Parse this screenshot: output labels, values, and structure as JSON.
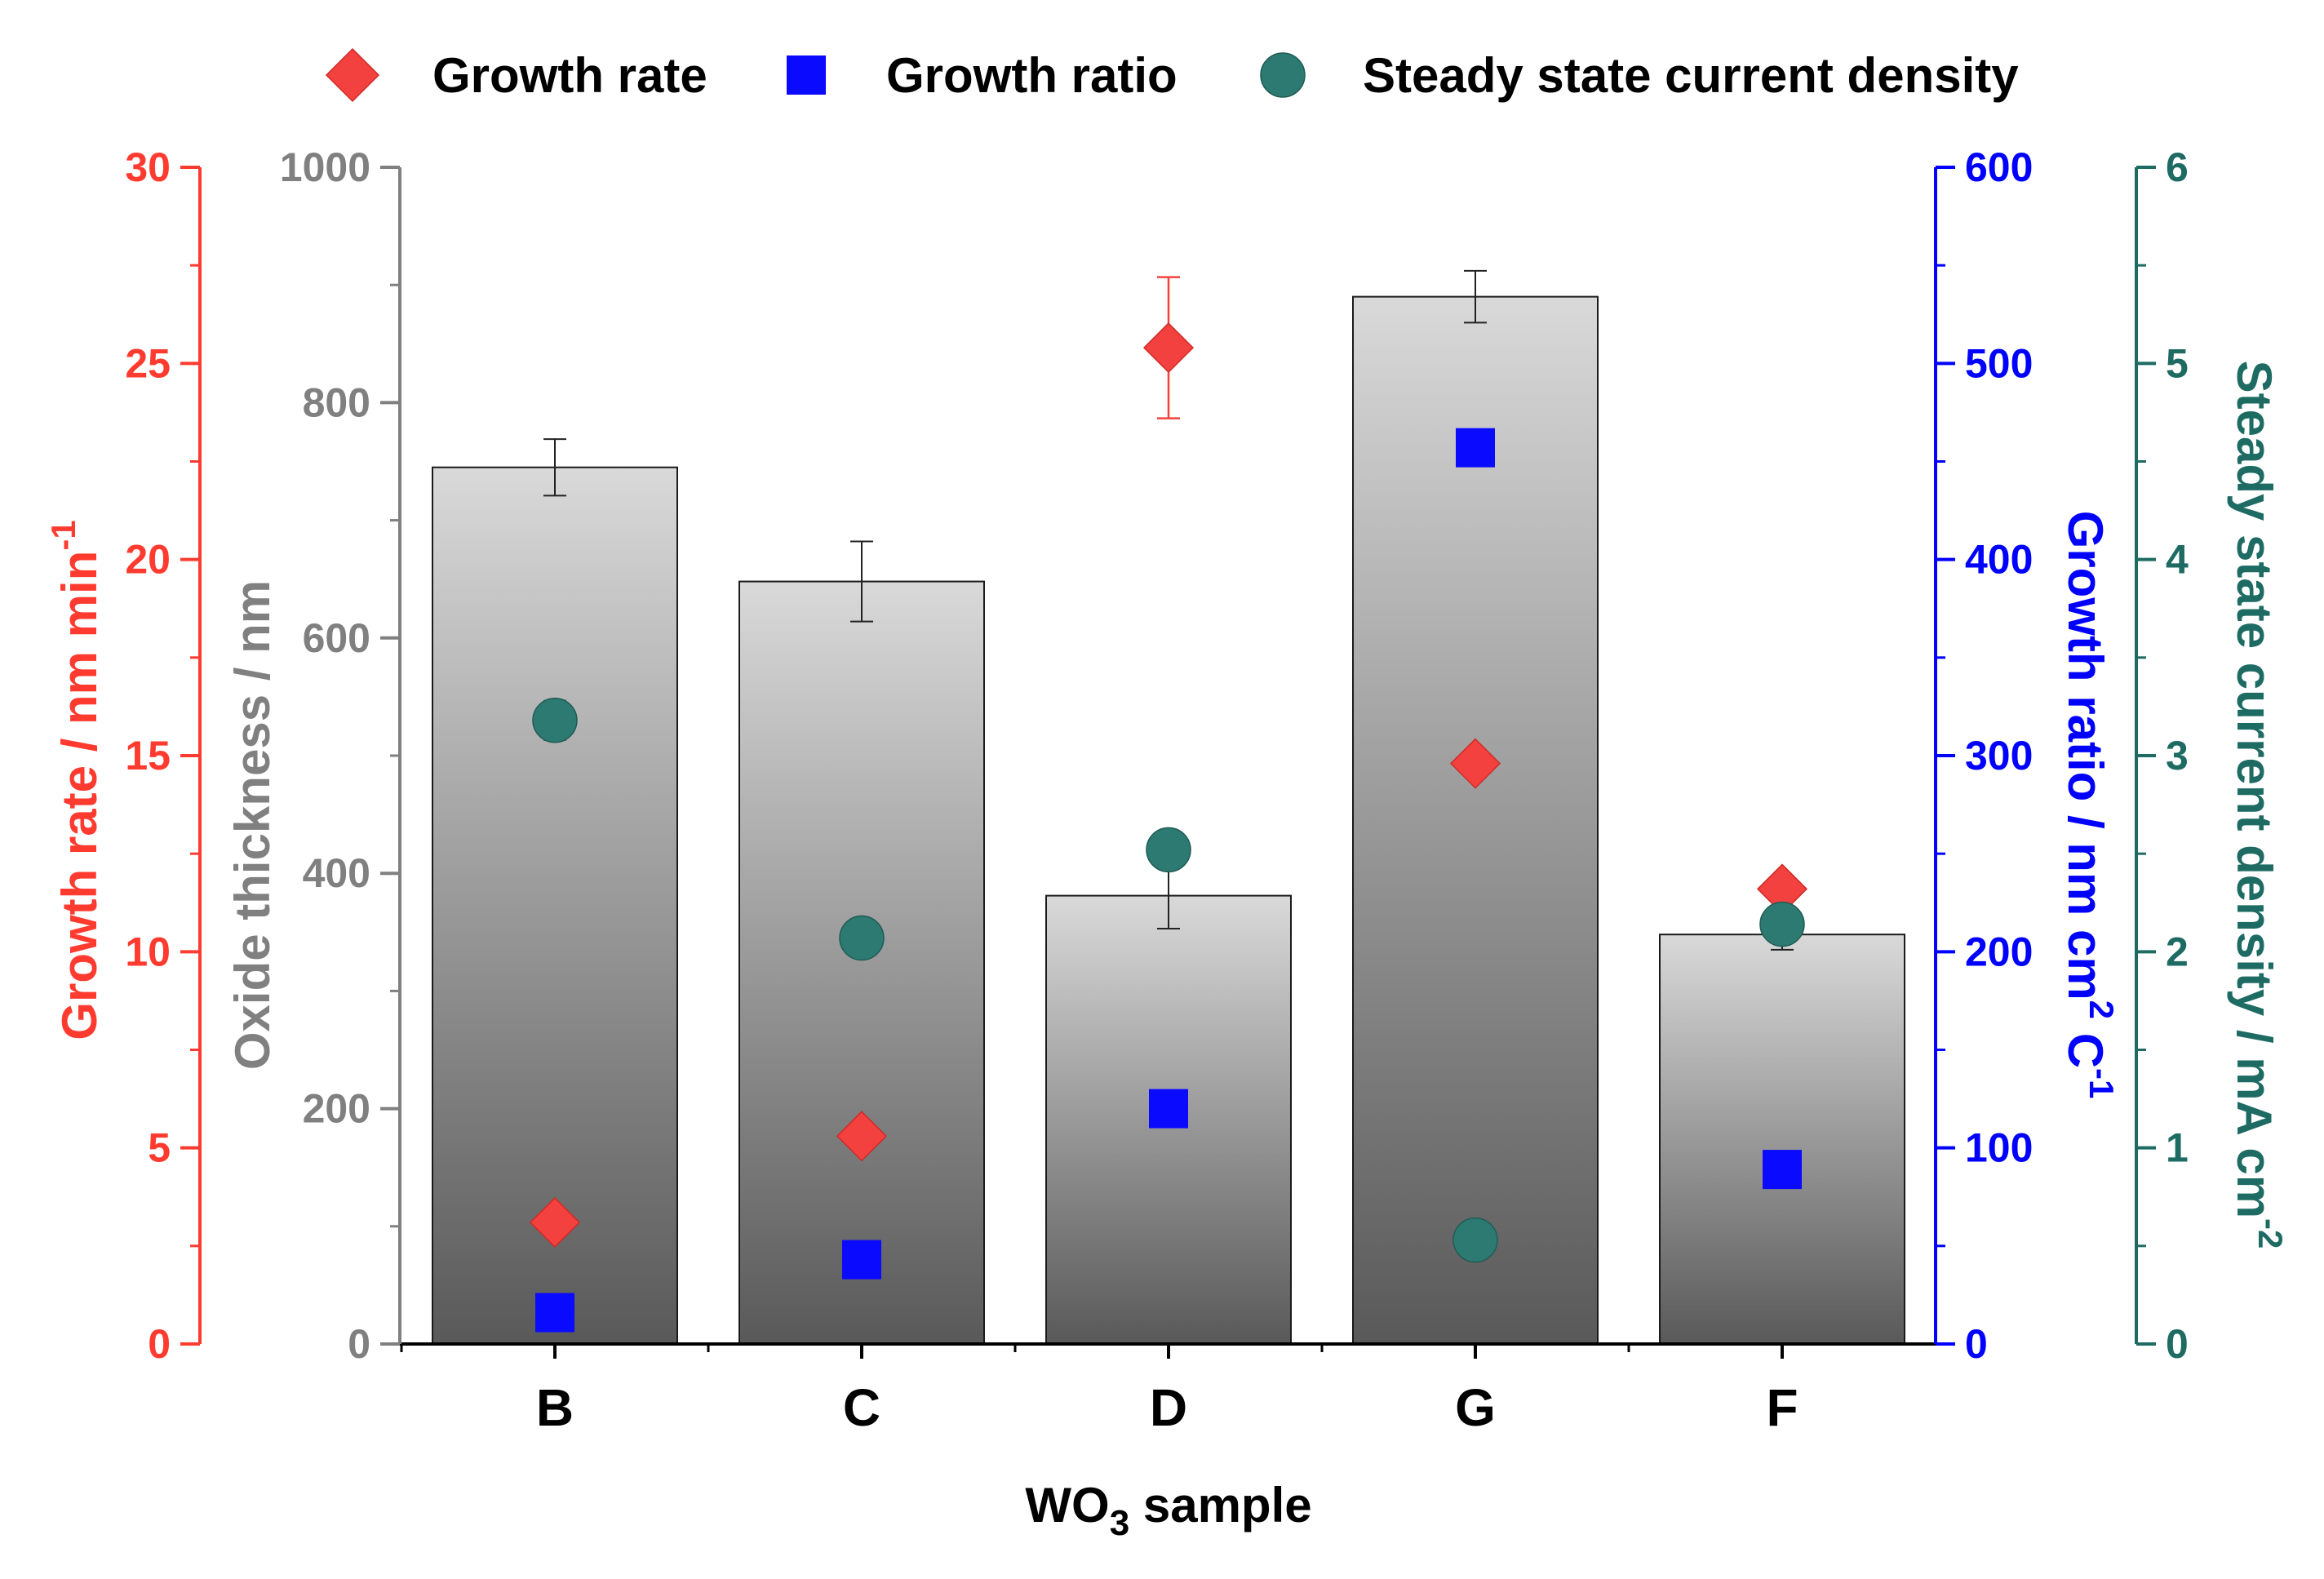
{
  "chart_data": {
    "type": "bar",
    "categories": [
      "B",
      "C",
      "D",
      "G",
      "F"
    ],
    "xlabel": {
      "main": "WO",
      "sub": "3",
      "rest": " sample"
    },
    "series": [
      {
        "name": "",
        "axis": "oxide",
        "kind": "bar",
        "values": [
          745,
          648,
          381,
          890,
          348
        ],
        "errors": [
          24,
          34,
          28,
          22,
          13
        ]
      },
      {
        "name": "Growth rate",
        "axis": "rate",
        "kind": "diamond",
        "values": [
          3.1,
          5.3,
          25.4,
          14.8,
          11.6
        ],
        "errors": [
          0,
          0,
          1.8,
          0,
          0
        ]
      },
      {
        "name": "Growth ratio",
        "axis": "ratio",
        "kind": "square",
        "values": [
          16,
          43,
          120,
          457,
          89
        ],
        "errors": [
          0,
          0,
          0,
          0,
          0
        ]
      },
      {
        "name": "Steady state current density",
        "axis": "current",
        "kind": "circle",
        "values": [
          3.18,
          2.07,
          2.52,
          0.53,
          2.14
        ],
        "errors": [
          0.1,
          0,
          0,
          0,
          0
        ]
      }
    ],
    "axes": {
      "rate": {
        "title": "Growth rate / nm min",
        "title_sup": "-1",
        "ylim": [
          0,
          30
        ],
        "ticks": [
          0,
          5,
          10,
          15,
          20,
          25,
          30
        ],
        "color": "#ff3b30"
      },
      "oxide": {
        "title": "Oxide thickness / nm",
        "ylim": [
          0,
          1000
        ],
        "ticks": [
          0,
          200,
          400,
          600,
          800,
          1000
        ],
        "color": "#808080"
      },
      "ratio": {
        "title_pre": "Growth ratio / nm cm",
        "title_sup1": "2",
        "title_mid": " C",
        "title_sup2": "-1",
        "ylim": [
          0,
          600
        ],
        "ticks": [
          0,
          100,
          200,
          300,
          400,
          500,
          600
        ],
        "color": "#0000ff"
      },
      "current": {
        "title_pre": "Steady state current density /  mA cm",
        "title_sup": "-2",
        "ylim": [
          0,
          6
        ],
        "ticks": [
          0,
          1,
          2,
          3,
          4,
          5,
          6
        ],
        "color": "#1e6b63"
      }
    },
    "colors": {
      "diamond": "#f2413e",
      "square": "#0a0aff",
      "circle": "#2d7a72",
      "bar_top": "#d9d9d9",
      "bar_bottom": "#595959"
    },
    "legend_position": "top"
  }
}
